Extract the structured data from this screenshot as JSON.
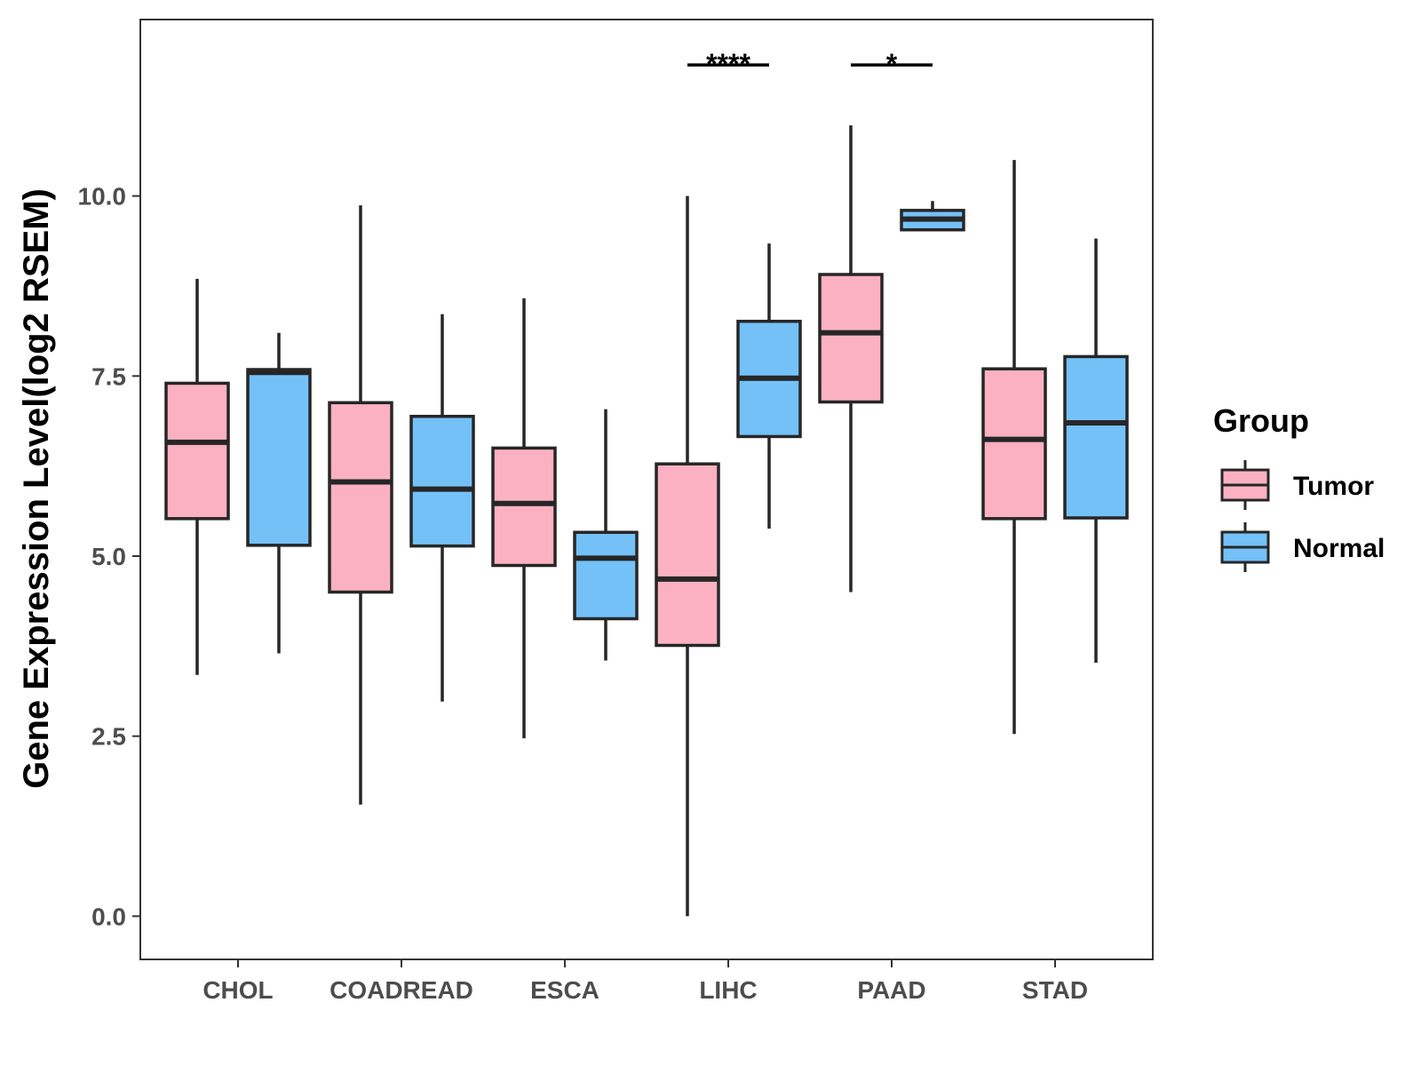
{
  "chart_data": {
    "type": "boxplot",
    "title": "",
    "xlabel": "",
    "ylabel": "Gene Expression Level(log2 RSEM)",
    "ylim": [
      -0.6,
      12.45
    ],
    "yticks": [
      {
        "value": 0.0,
        "label": "0.0"
      },
      {
        "value": 2.5,
        "label": "2.5"
      },
      {
        "value": 5.0,
        "label": "5.0"
      },
      {
        "value": 7.5,
        "label": "7.5"
      },
      {
        "value": 10.0,
        "label": "10.0"
      }
    ],
    "categories": [
      "CHOL",
      "COADREAD",
      "ESCA",
      "LIHC",
      "PAAD",
      "STAD"
    ],
    "legend": {
      "title": "Group",
      "position": "right",
      "items": [
        {
          "name": "Tumor",
          "color": "#FBB1C1"
        },
        {
          "name": "Normal",
          "color": "#74C1F8"
        }
      ]
    },
    "series": [
      {
        "name": "Tumor",
        "color": "#FBB1C1",
        "boxes": [
          {
            "category": "CHOL",
            "min": 3.35,
            "q1": 5.52,
            "median": 6.58,
            "q3": 7.4,
            "max": 8.85
          },
          {
            "category": "COADREAD",
            "min": 1.55,
            "q1": 4.5,
            "median": 6.03,
            "q3": 7.13,
            "max": 9.87
          },
          {
            "category": "ESCA",
            "min": 2.47,
            "q1": 4.87,
            "median": 5.73,
            "q3": 6.5,
            "max": 8.58
          },
          {
            "category": "LIHC",
            "min": 0.0,
            "q1": 3.76,
            "median": 4.68,
            "q3": 6.28,
            "max": 10.0
          },
          {
            "category": "PAAD",
            "min": 4.5,
            "q1": 7.14,
            "median": 8.1,
            "q3": 8.91,
            "max": 10.98
          },
          {
            "category": "STAD",
            "min": 2.53,
            "q1": 5.52,
            "median": 6.62,
            "q3": 7.6,
            "max": 10.5
          }
        ]
      },
      {
        "name": "Normal",
        "color": "#74C1F8",
        "boxes": [
          {
            "category": "CHOL",
            "min": 3.65,
            "q1": 5.15,
            "median": 7.55,
            "q3": 7.59,
            "max": 8.1
          },
          {
            "category": "COADREAD",
            "min": 2.98,
            "q1": 5.14,
            "median": 5.93,
            "q3": 6.94,
            "max": 8.36
          },
          {
            "category": "ESCA",
            "min": 3.55,
            "q1": 4.13,
            "median": 4.97,
            "q3": 5.33,
            "max": 7.04
          },
          {
            "category": "LIHC",
            "min": 5.38,
            "q1": 6.66,
            "median": 7.47,
            "q3": 8.26,
            "max": 9.34
          },
          {
            "category": "PAAD",
            "min": 9.53,
            "q1": 9.53,
            "median": 9.68,
            "q3": 9.8,
            "max": 9.93
          },
          {
            "category": "STAD",
            "min": 3.52,
            "q1": 5.53,
            "median": 6.85,
            "q3": 7.77,
            "max": 9.41
          }
        ]
      }
    ],
    "annotations": [
      {
        "category": "LIHC",
        "label": "****",
        "y": 11.82
      },
      {
        "category": "PAAD",
        "label": "*",
        "y": 11.82
      }
    ]
  }
}
